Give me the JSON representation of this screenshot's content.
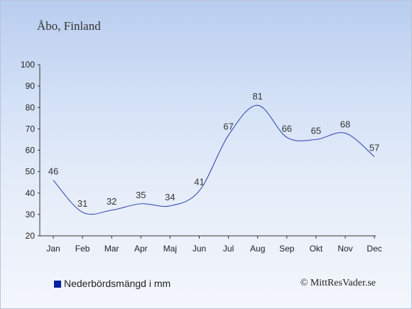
{
  "header": {
    "title": "Åbo, Finland"
  },
  "legend": {
    "label": "Nederbördsmängd i mm",
    "color": "#0a1fa0"
  },
  "credit": {
    "text": "© MittResVader.se"
  },
  "chart_data": {
    "type": "line",
    "categories": [
      "Jan",
      "Feb",
      "Mar",
      "Apr",
      "Maj",
      "Jun",
      "Jul",
      "Aug",
      "Sep",
      "Okt",
      "Nov",
      "Dec"
    ],
    "series": [
      {
        "name": "Nederbördsmängd i mm",
        "values": [
          46,
          31,
          32,
          35,
          34,
          41,
          67,
          81,
          66,
          65,
          68,
          57
        ]
      }
    ],
    "data_labels": [
      "46",
      "31",
      "32",
      "35",
      "34",
      "41",
      "67",
      "81",
      "66",
      "65",
      "68",
      "57"
    ],
    "ylim": [
      20,
      100
    ],
    "yticks": [
      20,
      30,
      40,
      50,
      60,
      70,
      80,
      90,
      100
    ],
    "ytick_labels": [
      "20",
      "30",
      "40",
      "50",
      "60",
      "70",
      "80",
      "90",
      "100"
    ],
    "line_color": "#2a3fb0",
    "grid": false,
    "legend_position": "bottom-left"
  }
}
